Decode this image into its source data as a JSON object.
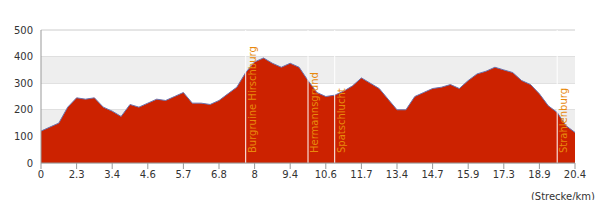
{
  "chart_data": {
    "type": "area",
    "x_label": "(Strecke/km)",
    "categories": [
      "0",
      null,
      null,
      null,
      "2.3",
      null,
      null,
      null,
      "3.4",
      null,
      null,
      null,
      "4.6",
      null,
      null,
      null,
      "5.7",
      null,
      null,
      null,
      "6.8",
      null,
      null,
      null,
      "8",
      null,
      null,
      null,
      "9.4",
      null,
      null,
      null,
      "10.6",
      null,
      null,
      null,
      "11.7",
      null,
      null,
      null,
      "13.4",
      null,
      null,
      null,
      "14.7",
      null,
      null,
      null,
      "15.9",
      null,
      null,
      null,
      "17.3",
      null,
      null,
      null,
      "18.9",
      null,
      null,
      null,
      "20.4"
    ],
    "values": [
      120,
      135,
      150,
      210,
      245,
      240,
      245,
      210,
      195,
      175,
      220,
      210,
      225,
      240,
      235,
      250,
      265,
      225,
      225,
      220,
      235,
      260,
      285,
      340,
      380,
      395,
      375,
      360,
      375,
      360,
      310,
      265,
      250,
      255,
      270,
      290,
      320,
      300,
      280,
      240,
      200,
      200,
      250,
      265,
      280,
      285,
      295,
      280,
      310,
      335,
      345,
      360,
      350,
      340,
      310,
      295,
      260,
      215,
      190,
      140,
      115
    ],
    "color": "#cc2200",
    "ylim": [
      0,
      500
    ],
    "yticks": [
      0,
      100,
      200,
      300,
      400,
      500
    ],
    "grid": true,
    "annotations": [
      {
        "label": "Burgruine Hirschburg",
        "x": 23
      },
      {
        "label": "Hermannsgrund",
        "x": 30
      },
      {
        "label": "Spatschlucht",
        "x": 33
      },
      {
        "label": "Strahlenburg",
        "x": 58
      }
    ]
  }
}
